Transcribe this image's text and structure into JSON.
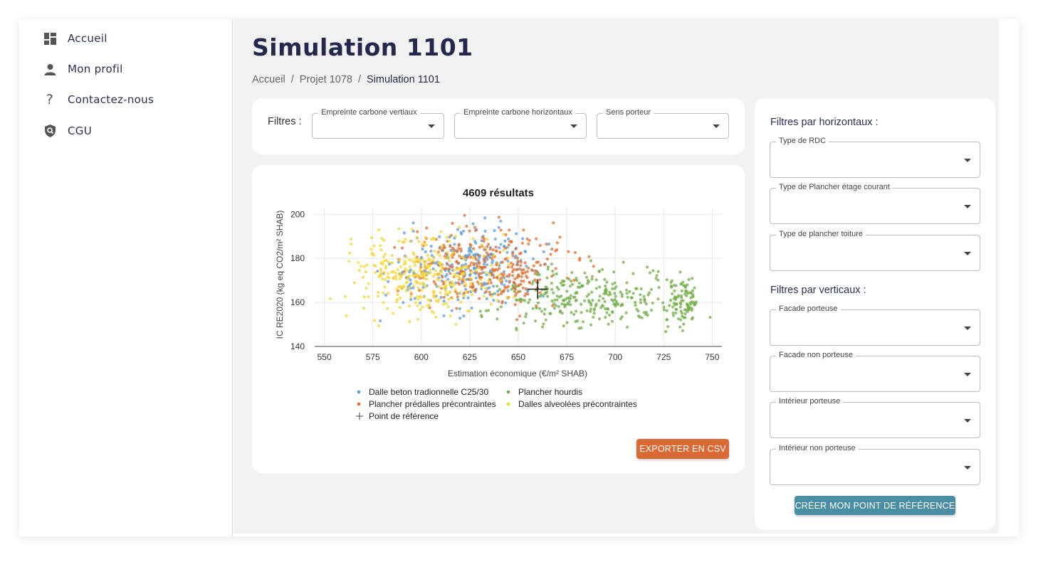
{
  "sidebar": {
    "items": [
      {
        "label": "Accueil",
        "icon": "dashboard-icon"
      },
      {
        "label": "Mon profil",
        "icon": "person-icon"
      },
      {
        "label": "Contactez-nous",
        "icon": "help-icon"
      },
      {
        "label": "CGU",
        "icon": "shield-search-icon"
      }
    ]
  },
  "header": {
    "title": "Simulation 1101",
    "breadcrumb": [
      "Accueil",
      "Projet 1078",
      "Simulation 1101"
    ],
    "separator": "/"
  },
  "filters": {
    "label": "Filtres :",
    "selects": [
      {
        "label": "Empreinte carbone vertiaux",
        "value": ""
      },
      {
        "label": "Empreinte carbone horizontaux",
        "value": ""
      },
      {
        "label": "Sens porteur",
        "value": ""
      }
    ]
  },
  "side_filters": {
    "horizontal_heading": "Filtres par horizontaux :",
    "horizontal": [
      {
        "label": "Type de RDC",
        "value": ""
      },
      {
        "label": "Type de Plancher étage courant",
        "value": ""
      },
      {
        "label": "Type de plancher toiture",
        "value": ""
      }
    ],
    "vertical_heading": "Filtres par verticaux :",
    "vertical": [
      {
        "label": "Facade porteuse",
        "value": ""
      },
      {
        "label": "Facade non porteuse",
        "value": ""
      },
      {
        "label": "Intérieur porteuse",
        "value": ""
      },
      {
        "label": "Intérieur non porteuse",
        "value": ""
      }
    ],
    "ref_button": "CRÉER MON POINT DE RÉFÉRENCE"
  },
  "export_button": "EXPORTER EN CSV",
  "colors": {
    "accent_orange": "#d96a36",
    "accent_teal": "#4a8ea4",
    "navy": "#25284d"
  },
  "chart_data": {
    "type": "scatter",
    "title": "4609 résultats",
    "xlabel": "Estimation économique (€/m² SHAB)",
    "ylabel": "IC RE2020 (kg eq CO2/m² SHAB)",
    "xlim": [
      545,
      755
    ],
    "ylim": [
      140,
      203
    ],
    "xticks": [
      550,
      575,
      600,
      625,
      650,
      675,
      700,
      725,
      750
    ],
    "yticks": [
      140,
      160,
      180,
      200
    ],
    "grid": true,
    "legend_position": "bottom",
    "series": [
      {
        "name": "Dalle beton tradionnelle C25/30",
        "color": "#5b9bd5",
        "x_range": [
          570,
          675
        ],
        "y_range": [
          148,
          202
        ]
      },
      {
        "name": "Plancher hourdis",
        "color": "#70ad47",
        "x_range": [
          615,
          755
        ],
        "y_range": [
          142,
          182
        ]
      },
      {
        "name": "Plancher prédalles précontraintes",
        "color": "#e06c2c",
        "x_range": [
          570,
          695
        ],
        "y_range": [
          150,
          202
        ]
      },
      {
        "name": "Dalles alveolées précontraintes",
        "color": "#f5d633",
        "x_range": [
          545,
          660
        ],
        "y_range": [
          145,
          200
        ]
      }
    ],
    "reference_point": {
      "name": "Point de référence",
      "x": 660,
      "y": 166
    }
  }
}
